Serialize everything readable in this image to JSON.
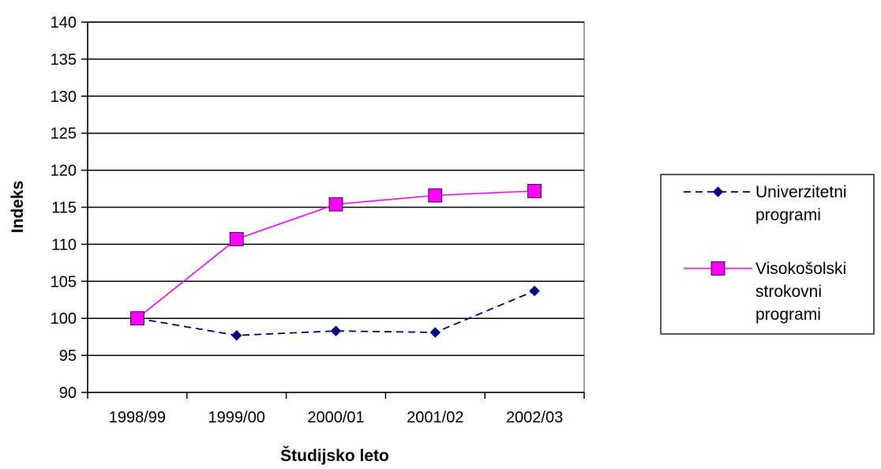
{
  "chart_data": {
    "type": "line",
    "title": "",
    "xlabel": "Študijsko leto",
    "ylabel": "Indeks",
    "categories": [
      "1998/99",
      "1999/00",
      "2000/01",
      "2001/02",
      "2002/03"
    ],
    "ylim": [
      90,
      140
    ],
    "yticks": [
      90,
      95,
      100,
      105,
      110,
      115,
      120,
      125,
      130,
      135,
      140
    ],
    "grid": "horizontal",
    "legend_position": "right",
    "series": [
      {
        "name_lines": [
          "Univerzitetni",
          "programi"
        ],
        "values": [
          100,
          97.7,
          98.3,
          98.1,
          103.7
        ],
        "color": "#000080",
        "line_style": "dashed",
        "marker": "diamond"
      },
      {
        "name_lines": [
          "Visokošolski",
          "strokovni",
          "programi"
        ],
        "values": [
          100,
          110.7,
          115.4,
          116.6,
          117.2
        ],
        "color": "#ff00ff",
        "line_style": "solid",
        "marker": "square"
      }
    ]
  }
}
